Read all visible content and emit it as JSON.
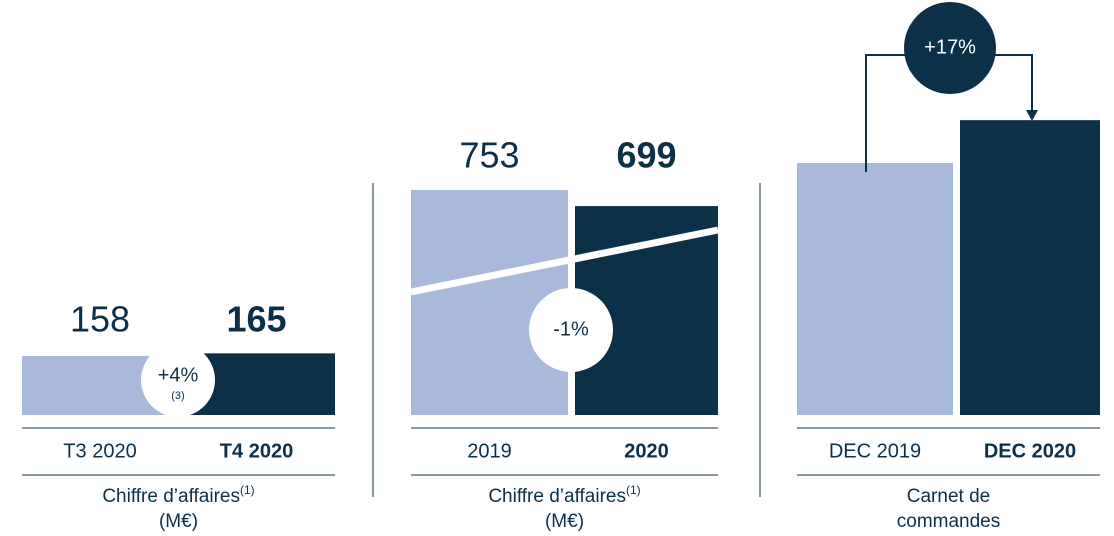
{
  "chart_data": [
    {
      "type": "bar",
      "categories": [
        "T3 2020",
        "T4 2020"
      ],
      "values": [
        158,
        165
      ],
      "colors": [
        "#a9b9d9",
        "#0d3049"
      ],
      "ylim": [
        0,
        843
      ],
      "change": "+4%",
      "change_note": "(3)",
      "caption": [
        "Chiffre d’affaires",
        "(M€)"
      ],
      "caption_note": "(1)"
    },
    {
      "type": "bar",
      "categories": [
        "2019",
        "2020"
      ],
      "values": [
        753,
        699
      ],
      "colors": [
        "#a9b9d9",
        "#0d3049"
      ],
      "ylim": [
        0,
        1054
      ],
      "change": "-1%",
      "caption": [
        "Chiffre d’affaires",
        "(M€)"
      ],
      "caption_note": "(1)"
    },
    {
      "type": "bar",
      "categories": [
        "DEC 2019",
        "DEC 2020"
      ],
      "values": [
        100,
        117
      ],
      "colors": [
        "#a9b9d9",
        "#0d3049"
      ],
      "ylim": [
        0,
        125
      ],
      "change": "+17%",
      "caption": [
        "Carnet de",
        "commandes"
      ]
    }
  ]
}
